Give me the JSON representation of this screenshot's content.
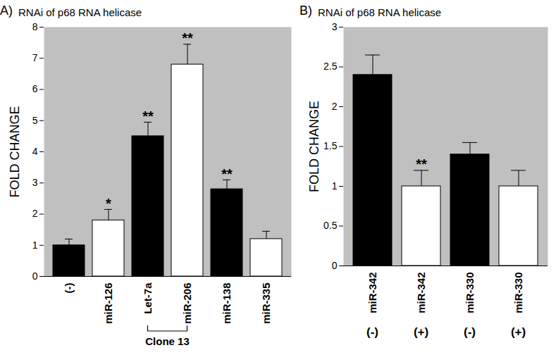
{
  "chart_data": [
    {
      "type": "bar",
      "panel_label": "A)",
      "title": "RNAi of p68 RNA helicase",
      "y_label": "FOLD CHANGE",
      "categories": [
        "(-)",
        "miR-126",
        "Let-7a",
        "miR-206",
        "miR-138",
        "miR-335"
      ],
      "values": [
        1.0,
        1.8,
        4.5,
        6.8,
        2.8,
        1.2
      ],
      "errors": [
        0.2,
        0.35,
        0.45,
        0.65,
        0.3,
        0.25
      ],
      "colors": [
        "#000000",
        "#ffffff",
        "#000000",
        "#ffffff",
        "#000000",
        "#ffffff"
      ],
      "significance": [
        null,
        "*",
        "**",
        "**",
        "**",
        null
      ],
      "brackets": [
        {
          "label": "Clone 13",
          "categories": [
            "Let-7a",
            "miR-206"
          ]
        }
      ],
      "ylim": [
        0,
        8
      ],
      "yticks": [
        0,
        1,
        2,
        3,
        4,
        5,
        6,
        7,
        8
      ],
      "grid": false
    },
    {
      "type": "bar",
      "panel_label": "B)",
      "title": "RNAi of p68 RNA helicase",
      "y_label": "FOLD CHANGE",
      "categories": [
        "miR-342",
        "miR-342",
        "miR-330",
        "miR-330"
      ],
      "sub_labels": [
        "(-)",
        "(+)",
        "(-)",
        "(+)"
      ],
      "values": [
        2.4,
        1.0,
        1.4,
        1.0
      ],
      "errors": [
        0.25,
        0.2,
        0.15,
        0.2
      ],
      "colors": [
        "#000000",
        "#ffffff",
        "#000000",
        "#ffffff"
      ],
      "significance": [
        null,
        "**",
        null,
        null
      ],
      "ylim": [
        0,
        3
      ],
      "yticks": [
        0,
        0.5,
        1,
        1.5,
        2,
        2.5,
        3
      ],
      "grid": false
    }
  ]
}
